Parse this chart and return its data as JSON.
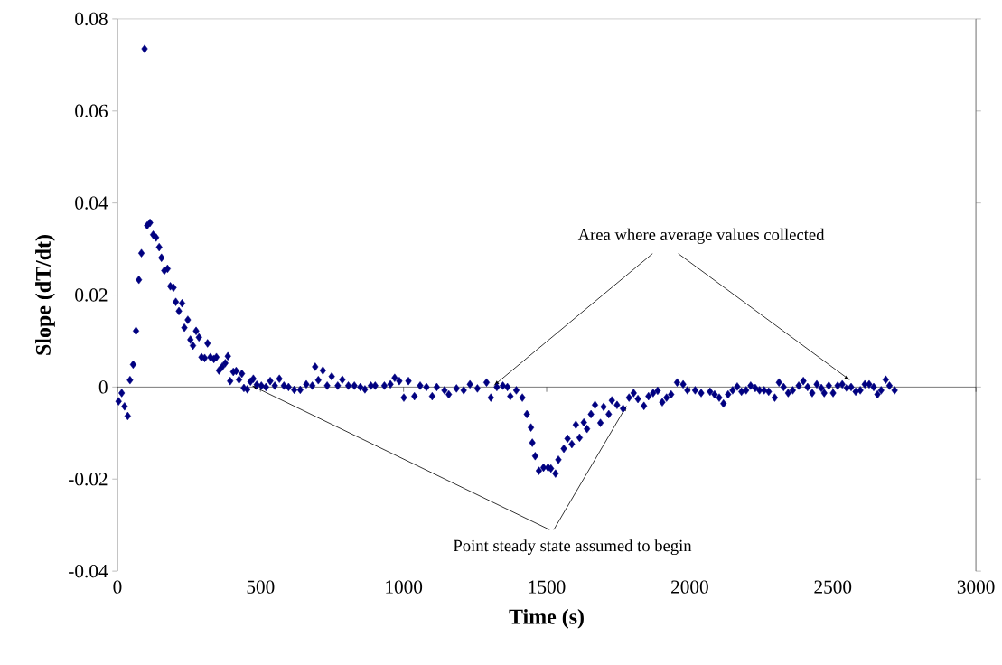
{
  "chart_data": {
    "type": "scatter",
    "xlabel": "Time (s)",
    "ylabel": "Slope (dT/dt)",
    "annotations": [
      {
        "text": "Area where average values collected",
        "x": 1315,
        "y": 0.0003
      },
      {
        "text": "Point steady state assumed to begin",
        "x": 470,
        "y": 0.0003
      }
    ],
    "x": [
      4,
      15,
      25,
      36,
      44,
      55,
      65,
      75,
      84,
      95,
      104,
      114,
      125,
      135,
      146,
      154,
      164,
      175,
      185,
      196,
      204,
      215,
      226,
      234,
      246,
      255,
      264,
      275,
      285,
      294,
      305,
      315,
      325,
      337,
      346,
      355,
      366,
      377,
      386,
      394,
      405,
      415,
      425,
      435,
      442,
      454,
      465,
      475,
      487,
      503,
      519,
      534,
      550,
      566,
      582,
      598,
      618,
      639,
      660,
      681,
      691,
      702,
      718,
      733,
      749,
      770,
      786,
      807,
      828,
      849,
      865,
      886,
      901,
      933,
      954,
      969,
      985,
      1001,
      1017,
      1038,
      1058,
      1080,
      1100,
      1116,
      1143,
      1158,
      1185,
      1210,
      1232,
      1258,
      1290,
      1305,
      1326,
      1347,
      1363,
      1373,
      1394,
      1415,
      1431,
      1445,
      1450,
      1460,
      1473,
      1489,
      1505,
      1515,
      1531,
      1541,
      1560,
      1573,
      1588,
      1602,
      1615,
      1630,
      1641,
      1655,
      1669,
      1688,
      1699,
      1717,
      1728,
      1746,
      1767,
      1788,
      1804,
      1819,
      1840,
      1856,
      1872,
      1888,
      1904,
      1919,
      1935,
      1956,
      1977,
      1992,
      2019,
      2040,
      2071,
      2087,
      2103,
      2118,
      2134,
      2150,
      2166,
      2181,
      2197,
      2213,
      2229,
      2244,
      2260,
      2276,
      2297,
      2312,
      2328,
      2344,
      2360,
      2381,
      2397,
      2412,
      2428,
      2444,
      2460,
      2470,
      2486,
      2501,
      2517,
      2533,
      2549,
      2564,
      2580,
      2596,
      2612,
      2627,
      2643,
      2656,
      2669,
      2685,
      2698,
      2716
    ],
    "values": [
      -0.0031,
      -0.0013,
      -0.0042,
      -0.0063,
      0.0015,
      0.0049,
      0.0122,
      0.0233,
      0.0291,
      0.0735,
      0.0351,
      0.0357,
      0.0331,
      0.0325,
      0.0304,
      0.0281,
      0.0253,
      0.0257,
      0.0219,
      0.0216,
      0.0185,
      0.0165,
      0.0182,
      0.0129,
      0.0146,
      0.0103,
      0.009,
      0.0122,
      0.0108,
      0.0065,
      0.0063,
      0.0095,
      0.0065,
      0.0061,
      0.0065,
      0.0036,
      0.0044,
      0.0052,
      0.0067,
      0.0013,
      0.0033,
      0.0035,
      0.0016,
      0.0029,
      -0.0002,
      -0.0005,
      0.0012,
      0.0018,
      0.0005,
      0.0003,
      0.0,
      0.0013,
      0.0003,
      0.0018,
      0.0003,
      0.0,
      -0.0006,
      -0.0006,
      0.0006,
      0.0003,
      0.0044,
      0.0015,
      0.0036,
      0.0003,
      0.0023,
      0.0003,
      0.0016,
      0.0003,
      0.0003,
      0.0,
      -0.0005,
      0.0003,
      0.0003,
      0.0003,
      0.0006,
      0.002,
      0.0013,
      -0.0023,
      0.0013,
      -0.002,
      0.0003,
      0.0,
      -0.002,
      0.0,
      -0.0007,
      -0.0016,
      -0.0003,
      -0.0007,
      0.0006,
      -0.0003,
      0.001,
      -0.0023,
      0.0,
      0.0003,
      0.0,
      -0.002,
      -0.0007,
      -0.0023,
      -0.0059,
      -0.0088,
      -0.0121,
      -0.015,
      -0.0182,
      -0.0175,
      -0.0175,
      -0.0177,
      -0.0188,
      -0.0158,
      -0.0134,
      -0.0112,
      -0.0124,
      -0.0082,
      -0.011,
      -0.0077,
      -0.0091,
      -0.0059,
      -0.0039,
      -0.0078,
      -0.0043,
      -0.0059,
      -0.0029,
      -0.0039,
      -0.0047,
      -0.0023,
      -0.0013,
      -0.0026,
      -0.0041,
      -0.002,
      -0.0013,
      -0.0008,
      -0.0033,
      -0.0023,
      -0.0016,
      0.001,
      0.0006,
      -0.0007,
      -0.0007,
      -0.0013,
      -0.001,
      -0.0016,
      -0.0023,
      -0.0036,
      -0.0016,
      -0.0007,
      0.0001,
      -0.001,
      -0.0007,
      0.0003,
      -0.0002,
      -0.0007,
      -0.0007,
      -0.001,
      -0.0023,
      0.001,
      0.0,
      -0.0013,
      -0.0007,
      0.0003,
      0.0013,
      0.0,
      -0.0013,
      0.0006,
      -0.0002,
      -0.0013,
      0.0003,
      -0.0013,
      0.0003,
      0.0006,
      -0.0002,
      0.0,
      -0.001,
      -0.0007,
      0.0006,
      0.0006,
      0.0,
      -0.0016,
      -0.0007,
      0.0016,
      0.0003,
      -0.0007
    ],
    "color": "#000080",
    "marker": "diamond",
    "xlim": [
      0,
      3000
    ],
    "xticks": [
      0,
      500,
      1000,
      1500,
      2000,
      2500,
      3000
    ],
    "ylim": [
      -0.04,
      0.08
    ],
    "yticks": [
      -0.04,
      -0.02,
      0,
      0.02,
      0.04,
      0.06,
      0.08
    ]
  }
}
